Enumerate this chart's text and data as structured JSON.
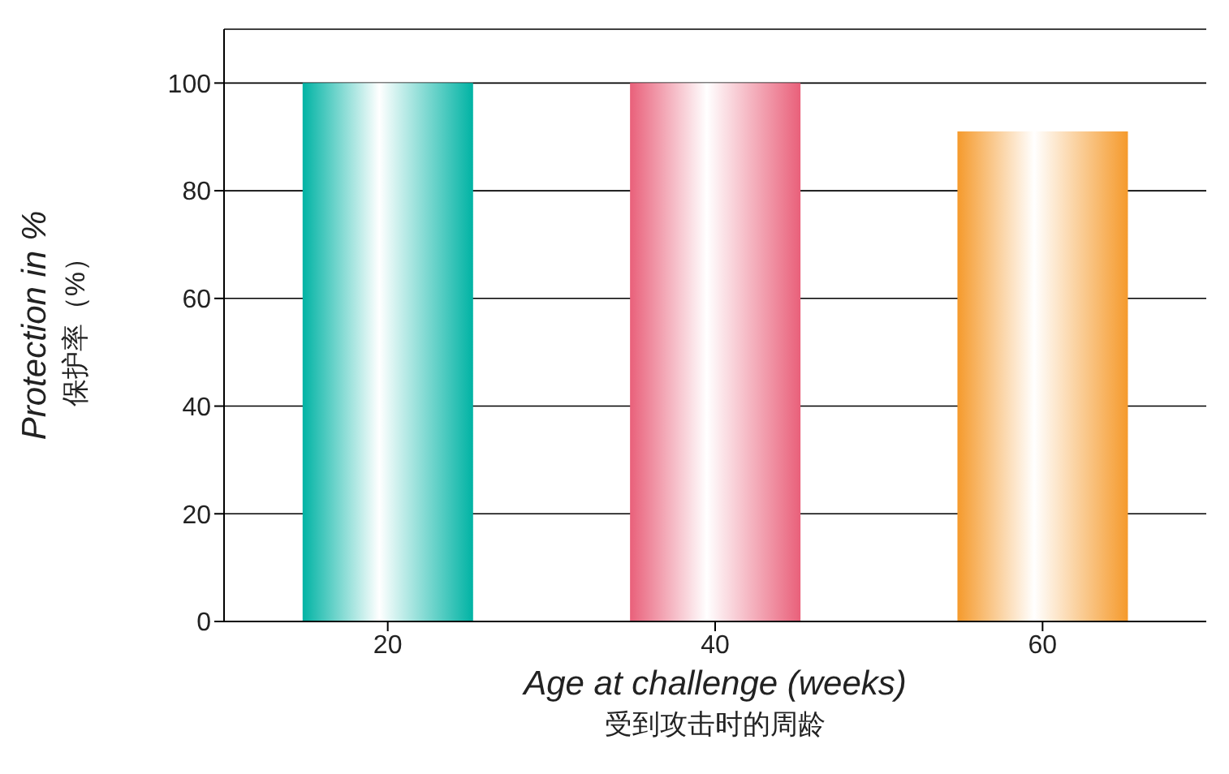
{
  "chart_data": {
    "type": "bar",
    "xlabel": "Age at challenge (weeks)\n受到攻击时的周龄",
    "ylabel": "Protection in %\n保护率（%）",
    "categories": [
      "20",
      "40",
      "60"
    ],
    "values": [
      100,
      100,
      91
    ],
    "colors": [
      "#00b3a4",
      "#e9607a",
      "#f59a2c"
    ],
    "ylim": [
      0,
      110
    ],
    "yticks": [
      0,
      20,
      40,
      60,
      80,
      100
    ],
    "grid": "y"
  }
}
